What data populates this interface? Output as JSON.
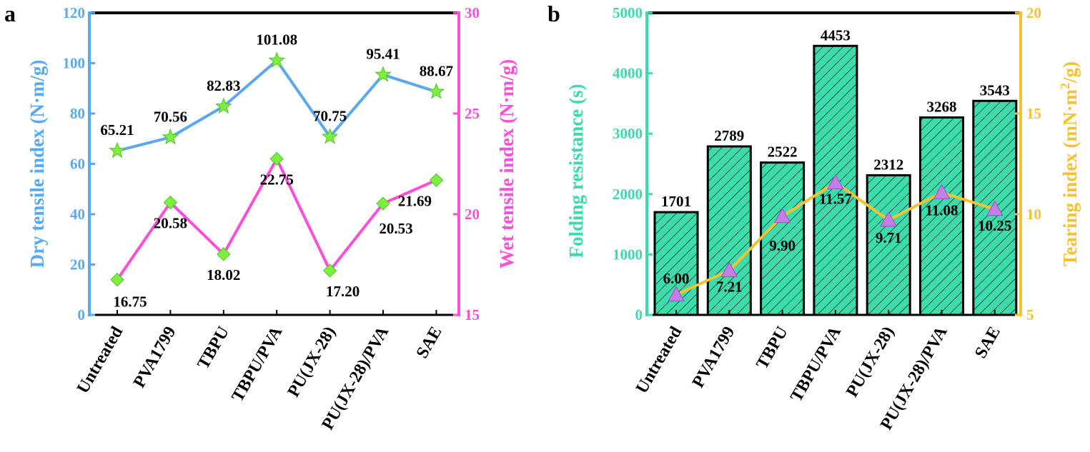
{
  "panel_a": {
    "label": "a",
    "chart_data": {
      "type": "line",
      "categories": [
        "Untreated",
        "PVA1799",
        "TBPU",
        "TBPU/PVA",
        "PU(JX-28)",
        "PU(JX-28)/PVA",
        "SAE"
      ],
      "left_axis": {
        "label": "Dry tensile index (N·m/g)",
        "range": [
          0,
          120
        ],
        "ticks": [
          "0",
          "20",
          "40",
          "60",
          "80",
          "100",
          "120"
        ],
        "color": "#5aa9f0"
      },
      "right_axis": {
        "label": "Wet tensile index (N·m/g)",
        "range": [
          15,
          30
        ],
        "ticks": [
          "15",
          "20",
          "25",
          "30"
        ],
        "color": "#ff4fd8"
      },
      "series": [
        {
          "axis": "left",
          "marker": "star",
          "line_color": "#5aa9f0",
          "marker_color": "#7cf03c",
          "values": [
            65.21,
            70.56,
            82.83,
            101.08,
            70.75,
            95.41,
            88.67
          ],
          "labels": [
            "65.21",
            "70.56",
            "82.83",
            "101.08",
            "70.75",
            "95.41",
            "88.67"
          ]
        },
        {
          "axis": "right",
          "marker": "diamond",
          "line_color": "#ff4fd8",
          "marker_color": "#7cf03c",
          "values": [
            16.75,
            20.58,
            18.02,
            22.75,
            17.2,
            20.53,
            21.69
          ],
          "labels": [
            "16.75",
            "20.58",
            "18.02",
            "22.75",
            "17.20",
            "20.53",
            "21.69"
          ]
        }
      ]
    }
  },
  "panel_b": {
    "label": "b",
    "chart_data": {
      "type": "bar",
      "categories": [
        "Untreated",
        "PVA1799",
        "TBPU",
        "TBPU/PVA",
        "PU(JX-28)",
        "PU(JX-28)/PVA",
        "SAE"
      ],
      "left_axis": {
        "label": "Folding resistance (s)",
        "range": [
          0,
          5000
        ],
        "ticks": [
          "0",
          "1000",
          "2000",
          "3000",
          "4000",
          "5000"
        ],
        "color": "#3dd9b0"
      },
      "right_axis": {
        "label_main": "Tearing index (mN·m",
        "label_sup": "2",
        "label_end": "/g)",
        "range": [
          5,
          20
        ],
        "ticks": [
          "5",
          "10",
          "15",
          "20"
        ],
        "color": "#f5c233"
      },
      "bars": {
        "fill": "#3ddcac",
        "values": [
          1701,
          2789,
          2522,
          4453,
          2312,
          3268,
          3543
        ],
        "labels": [
          "1701",
          "2789",
          "2522",
          "4453",
          "2312",
          "3268",
          "3543"
        ]
      },
      "line": {
        "axis": "right",
        "marker": "triangle",
        "line_color": "#f5c233",
        "marker_color": "#c77de8",
        "values": [
          6.0,
          7.21,
          9.9,
          11.57,
          9.71,
          11.08,
          10.25
        ],
        "labels": [
          "6.00",
          "7.21",
          "9.90",
          "11.57",
          "9.71",
          "11.08",
          "10.25"
        ]
      }
    }
  }
}
